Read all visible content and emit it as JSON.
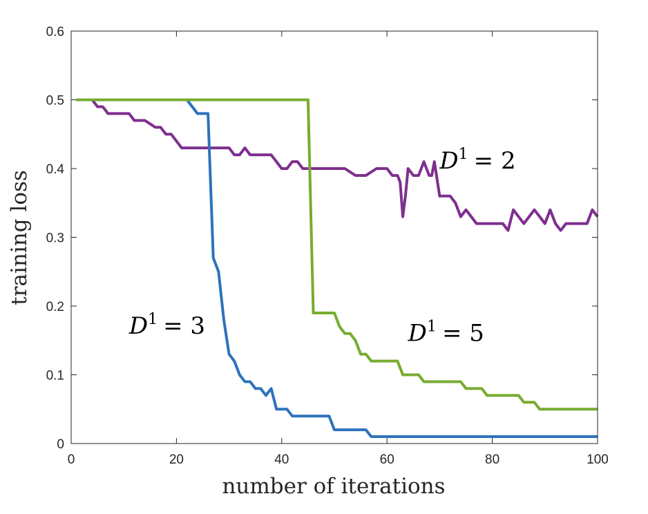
{
  "chart_data": {
    "type": "line",
    "title": "",
    "xlabel": "number of iterations",
    "ylabel": "training loss",
    "xlim": [
      0,
      100
    ],
    "ylim": [
      0,
      0.6
    ],
    "xticks": [
      0,
      20,
      40,
      60,
      80,
      100
    ],
    "yticks": [
      0,
      0.1,
      0.2,
      0.3,
      0.4,
      0.5,
      0.6
    ],
    "grid": false,
    "legend": "none",
    "series": [
      {
        "label_var": "D",
        "label_sup": "1",
        "label_rhs": "= 2",
        "color": "#7E2F8E",
        "x": [
          1,
          4,
          5,
          6,
          7,
          8,
          10,
          11,
          12,
          14,
          16,
          17,
          18,
          19,
          20,
          21,
          22,
          24,
          26,
          28,
          30,
          31,
          32,
          33,
          34,
          35,
          36,
          38,
          40,
          41,
          42,
          43,
          44,
          45,
          46,
          48,
          50,
          52,
          54,
          56,
          58,
          60,
          61,
          62,
          62.5,
          63,
          63.5,
          64,
          65,
          66,
          67,
          68,
          68.5,
          69,
          70,
          71,
          72,
          73,
          74,
          75,
          76,
          77,
          78,
          80,
          82,
          83,
          84,
          85,
          86,
          87,
          88,
          89,
          90,
          91,
          92,
          93,
          94,
          95,
          96,
          97,
          98,
          99,
          100
        ],
        "y": [
          0.5,
          0.5,
          0.49,
          0.49,
          0.48,
          0.48,
          0.48,
          0.48,
          0.47,
          0.47,
          0.46,
          0.46,
          0.45,
          0.45,
          0.44,
          0.43,
          0.43,
          0.43,
          0.43,
          0.43,
          0.43,
          0.42,
          0.42,
          0.43,
          0.42,
          0.42,
          0.42,
          0.42,
          0.4,
          0.4,
          0.41,
          0.41,
          0.4,
          0.4,
          0.4,
          0.4,
          0.4,
          0.4,
          0.39,
          0.39,
          0.4,
          0.4,
          0.39,
          0.39,
          0.38,
          0.33,
          0.36,
          0.4,
          0.39,
          0.39,
          0.41,
          0.39,
          0.39,
          0.41,
          0.36,
          0.36,
          0.36,
          0.35,
          0.33,
          0.34,
          0.33,
          0.32,
          0.32,
          0.32,
          0.32,
          0.31,
          0.34,
          0.33,
          0.32,
          0.33,
          0.34,
          0.33,
          0.32,
          0.34,
          0.32,
          0.31,
          0.32,
          0.32,
          0.32,
          0.32,
          0.32,
          0.34,
          0.33
        ]
      },
      {
        "label_var": "D",
        "label_sup": "1",
        "label_rhs": "= 3",
        "color": "#2E72BC",
        "x": [
          1,
          22,
          24,
          25,
          26,
          27,
          28,
          29,
          30,
          31,
          32,
          33,
          34,
          35,
          36,
          37,
          38,
          39,
          40,
          41,
          42,
          44,
          46,
          48,
          49,
          50,
          52,
          54,
          56,
          57,
          58,
          60,
          62,
          100
        ],
        "y": [
          0.5,
          0.5,
          0.48,
          0.48,
          0.48,
          0.27,
          0.25,
          0.18,
          0.13,
          0.12,
          0.1,
          0.09,
          0.09,
          0.08,
          0.08,
          0.07,
          0.08,
          0.05,
          0.05,
          0.05,
          0.04,
          0.04,
          0.04,
          0.04,
          0.04,
          0.02,
          0.02,
          0.02,
          0.02,
          0.01,
          0.01,
          0.01,
          0.01,
          0.01
        ]
      },
      {
        "label_var": "D",
        "label_sup": "1",
        "label_rhs": "= 5",
        "color": "#77AC30",
        "x": [
          1,
          45,
          46,
          48,
          50,
          51,
          52,
          53,
          54,
          55,
          56,
          57,
          58,
          61,
          62,
          63,
          64,
          66,
          67,
          68,
          70,
          72,
          74,
          75,
          76,
          78,
          79,
          80,
          82,
          84,
          85,
          86,
          87,
          88,
          89,
          90,
          92,
          95,
          100
        ],
        "y": [
          0.5,
          0.5,
          0.19,
          0.19,
          0.19,
          0.17,
          0.16,
          0.16,
          0.15,
          0.13,
          0.13,
          0.12,
          0.12,
          0.12,
          0.12,
          0.1,
          0.1,
          0.1,
          0.09,
          0.09,
          0.09,
          0.09,
          0.09,
          0.08,
          0.08,
          0.08,
          0.07,
          0.07,
          0.07,
          0.07,
          0.07,
          0.06,
          0.06,
          0.06,
          0.05,
          0.05,
          0.05,
          0.05,
          0.05
        ]
      }
    ],
    "annotations": [
      {
        "series": 0,
        "var": "D",
        "sup": "1",
        "rhs": "= 2",
        "x": 70,
        "y": 0.4
      },
      {
        "series": 1,
        "var": "D",
        "sup": "1",
        "rhs": "= 3",
        "x": 11,
        "y": 0.16
      },
      {
        "series": 2,
        "var": "D",
        "sup": "1",
        "rhs": "= 5",
        "x": 64,
        "y": 0.149
      }
    ]
  }
}
